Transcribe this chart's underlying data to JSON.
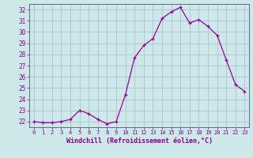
{
  "x": [
    0,
    1,
    2,
    3,
    4,
    5,
    6,
    7,
    8,
    9,
    10,
    11,
    12,
    13,
    14,
    15,
    16,
    17,
    18,
    19,
    20,
    21,
    22,
    23
  ],
  "y": [
    22.0,
    21.9,
    21.9,
    22.0,
    22.2,
    23.0,
    22.7,
    22.2,
    21.8,
    22.0,
    24.4,
    27.7,
    28.8,
    29.4,
    31.2,
    31.8,
    32.2,
    30.8,
    31.1,
    30.5,
    29.7,
    27.5,
    25.3,
    24.7
  ],
  "xlabel": "Windchill (Refroidissement éolien,°C)",
  "xlim": [
    -0.5,
    23.5
  ],
  "ylim": [
    21.5,
    32.5
  ],
  "yticks": [
    22,
    23,
    24,
    25,
    26,
    27,
    28,
    29,
    30,
    31,
    32
  ],
  "xticks": [
    0,
    1,
    2,
    3,
    4,
    5,
    6,
    7,
    8,
    9,
    10,
    11,
    12,
    13,
    14,
    15,
    16,
    17,
    18,
    19,
    20,
    21,
    22,
    23
  ],
  "line_color": "#990099",
  "marker_color": "#990099",
  "bg_color": "#cce8e8",
  "grid_color": "#aabbcc",
  "label_color": "#880088",
  "tick_color": "#880088",
  "spine_color": "#666688"
}
